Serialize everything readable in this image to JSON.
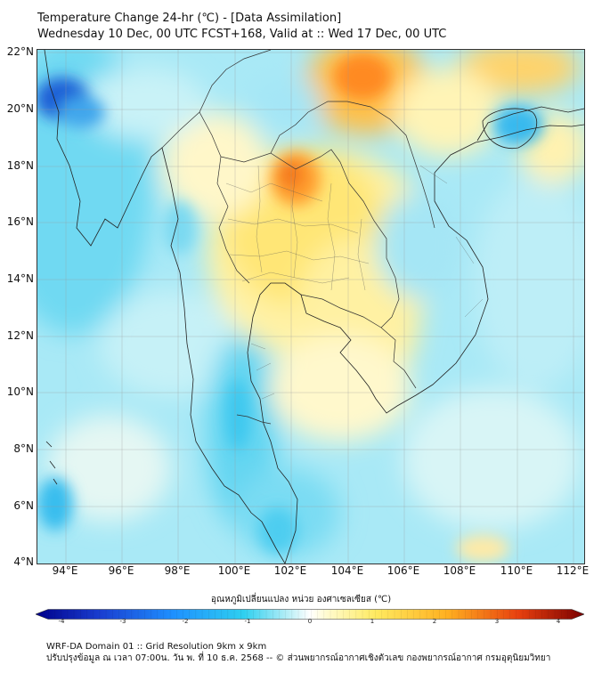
{
  "title": {
    "line1": "Temperature Change 24-hr (℃) - [Data Assimilation]",
    "line2": "Wednesday 10 Dec, 00 UTC FCST+168, Valid at :: Wed 17 Dec, 00 UTC"
  },
  "map": {
    "lat_ticks": [
      "22°N",
      "20°N",
      "18°N",
      "16°N",
      "14°N",
      "12°N",
      "10°N",
      "8°N",
      "6°N",
      "4°N"
    ],
    "lon_ticks": [
      "94°E",
      "96°E",
      "98°E",
      "100°E",
      "102°E",
      "104°E",
      "106°E",
      "108°E",
      "110°E",
      "112°E"
    ],
    "lat_range": [
      4,
      22
    ],
    "lon_range": [
      93,
      112.2
    ],
    "gridlines": true
  },
  "colorbar": {
    "label": "อุณหภูมิเปลี่ยนแปลง หน่วย องศาเซลเซียส (℃)",
    "ticks": [
      "-4",
      "-3",
      "-2",
      "-1",
      "0",
      "1",
      "2",
      "3",
      "4"
    ],
    "min": -4,
    "max": 4
  },
  "footer": {
    "line1": "WRF-DA Domain 01 :: Grid Resolution 9km x 9km",
    "line2": "ปรับปรุงข้อมูล ณ เวลา 07:00น. วัน พ. ที่ 10 ธ.ค. 2568 -- © ส่วนพยากรณ์อากาศเชิงตัวเลข กองพยากรณ์อากาศ กรมอุตุนิยมวิทยา"
  }
}
